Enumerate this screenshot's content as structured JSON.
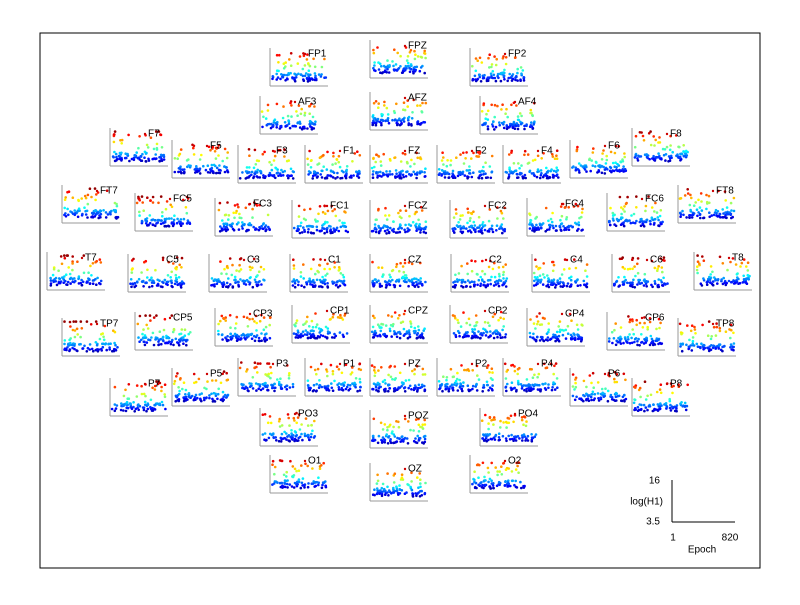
{
  "channels": [
    {
      "label": "FP1"
    },
    {
      "label": "FPZ"
    },
    {
      "label": "FP2"
    },
    {
      "label": "AF3"
    },
    {
      "label": "AFZ"
    },
    {
      "label": "AF4"
    },
    {
      "label": "F7"
    },
    {
      "label": "F5"
    },
    {
      "label": "F3"
    },
    {
      "label": "F1"
    },
    {
      "label": "FZ"
    },
    {
      "label": "F2"
    },
    {
      "label": "F4"
    },
    {
      "label": "F6"
    },
    {
      "label": "F8"
    },
    {
      "label": "FT7"
    },
    {
      "label": "FC5"
    },
    {
      "label": "FC3"
    },
    {
      "label": "FC1"
    },
    {
      "label": "FCZ"
    },
    {
      "label": "FC2"
    },
    {
      "label": "FC4"
    },
    {
      "label": "FC6"
    },
    {
      "label": "FT8"
    },
    {
      "label": "T7"
    },
    {
      "label": "C5"
    },
    {
      "label": "C3"
    },
    {
      "label": "C1"
    },
    {
      "label": "CZ"
    },
    {
      "label": "C2"
    },
    {
      "label": "C4"
    },
    {
      "label": "C6"
    },
    {
      "label": "T8"
    },
    {
      "label": "TP7"
    },
    {
      "label": "CP5"
    },
    {
      "label": "CP3"
    },
    {
      "label": "CP1"
    },
    {
      "label": "CPZ"
    },
    {
      "label": "CP2"
    },
    {
      "label": "CP4"
    },
    {
      "label": "CP6"
    },
    {
      "label": "TP8"
    },
    {
      "label": "P7"
    },
    {
      "label": "P5"
    },
    {
      "label": "P3"
    },
    {
      "label": "P1"
    },
    {
      "label": "PZ"
    },
    {
      "label": "P2"
    },
    {
      "label": "P4"
    },
    {
      "label": "P6"
    },
    {
      "label": "P8"
    },
    {
      "label": "PO3"
    },
    {
      "label": "POZ"
    },
    {
      "label": "PO4"
    },
    {
      "label": "O1"
    },
    {
      "label": "OZ"
    },
    {
      "label": "O2"
    }
  ],
  "scale": {
    "y_label": "log(H1)",
    "y_max": 16,
    "y_min": 3.5,
    "x_label": "Epoch",
    "x_min": 1,
    "x_max": 820
  }
}
